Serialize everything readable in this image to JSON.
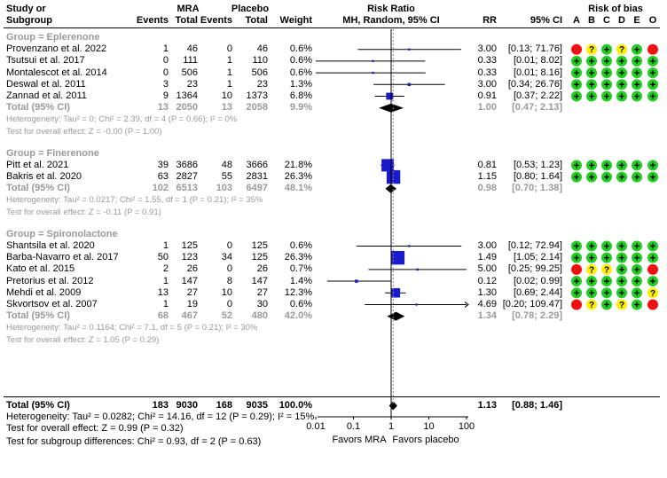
{
  "headers": {
    "study": "Study or",
    "subgroup": "Subgroup",
    "mra": "MRA",
    "placebo": "Placebo",
    "events": "Events",
    "total": "Total",
    "weight": "Weight",
    "risk_ratio": "Risk Ratio",
    "method": "MH, Random, 95% CI",
    "rr": "RR",
    "ci": "95% CI",
    "risk_of_bias": "Risk of bias",
    "bias_letters": [
      "A",
      "B",
      "C",
      "D",
      "E",
      "O"
    ]
  },
  "groups": [
    {
      "title": "Group = Eplerenone",
      "studies": [
        {
          "name": "Provenzano et al. 2022",
          "e1": "1",
          "n1": "46",
          "e2": "0",
          "n2": "46",
          "w": "0.6%",
          "rr": "3.00",
          "ci": "[0.13; 71.76]",
          "bias": [
            "red",
            "yellow",
            "green",
            "yellow",
            "green",
            "red"
          ]
        },
        {
          "name": "Tsutsui et al. 2017",
          "e1": "0",
          "n1": "111",
          "e2": "1",
          "n2": "110",
          "w": "0.6%",
          "rr": "0.33",
          "ci": "[0.01; 8.02]",
          "bias": [
            "green",
            "green",
            "green",
            "green",
            "green",
            "green"
          ]
        },
        {
          "name": "Montalescot et al. 2014",
          "e1": "0",
          "n1": "506",
          "e2": "1",
          "n2": "506",
          "w": "0.6%",
          "rr": "0.33",
          "ci": "[0.01; 8.16]",
          "bias": [
            "green",
            "green",
            "green",
            "green",
            "green",
            "green"
          ]
        },
        {
          "name": "Deswal et al. 2011",
          "e1": "3",
          "n1": "23",
          "e2": "1",
          "n2": "23",
          "w": "1.3%",
          "rr": "3.00",
          "ci": "[0.34; 26.76]",
          "bias": [
            "green",
            "green",
            "green",
            "green",
            "green",
            "green"
          ]
        },
        {
          "name": "Zannad et al. 2011",
          "e1": "9",
          "n1": "1364",
          "e2": "10",
          "n2": "1373",
          "w": "6.8%",
          "rr": "0.91",
          "ci": "[0.37; 2.22]",
          "bias": [
            "green",
            "green",
            "green",
            "green",
            "green",
            "green"
          ]
        }
      ],
      "total": {
        "label": "Total (95% CI)",
        "e1": "13",
        "n1": "2050",
        "e2": "13",
        "n2": "2058",
        "w": "9.9%",
        "rr": "1.00",
        "ci": "[0.47; 2.13]"
      },
      "heterogeneity": "Heterogeneity: Tau² = 0; Chi² = 2.39, df = 4 (P = 0.66); I² = 0%",
      "overall": "Test for overall effect: Z = -0.00 (P = 1.00)"
    },
    {
      "title": "Group = Finerenone",
      "studies": [
        {
          "name": "Pitt et al. 2021",
          "e1": "39",
          "n1": "3686",
          "e2": "48",
          "n2": "3666",
          "w": "21.8%",
          "rr": "0.81",
          "ci": "[0.53; 1.23]",
          "bias": [
            "green",
            "green",
            "green",
            "green",
            "green",
            "green"
          ]
        },
        {
          "name": "Bakris et al. 2020",
          "e1": "63",
          "n1": "2827",
          "e2": "55",
          "n2": "2831",
          "w": "26.3%",
          "rr": "1.15",
          "ci": "[0.80; 1.64]",
          "bias": [
            "green",
            "green",
            "green",
            "green",
            "green",
            "green"
          ]
        }
      ],
      "total": {
        "label": "Total (95% CI)",
        "e1": "102",
        "n1": "6513",
        "e2": "103",
        "n2": "6497",
        "w": "48.1%",
        "rr": "0.98",
        "ci": "[0.70; 1.38]"
      },
      "heterogeneity": "Heterogeneity: Tau² = 0.0217; Chi² = 1.55, df = 1 (P = 0.21); I² = 35%",
      "overall": "Test for overall effect: Z = -0.11 (P = 0.91)"
    },
    {
      "title": "Group = Spironolactone",
      "studies": [
        {
          "name": "Shantsila et al. 2020",
          "e1": "1",
          "n1": "125",
          "e2": "0",
          "n2": "125",
          "w": "0.6%",
          "rr": "3.00",
          "ci": "[0.12; 72.94]",
          "bias": [
            "green",
            "green",
            "green",
            "green",
            "green",
            "green"
          ]
        },
        {
          "name": "Barba-Navarro et al. 2017",
          "e1": "50",
          "n1": "123",
          "e2": "34",
          "n2": "125",
          "w": "26.3%",
          "rr": "1.49",
          "ci": "[1.05; 2.14]",
          "bias": [
            "green",
            "green",
            "green",
            "green",
            "green",
            "green"
          ]
        },
        {
          "name": "Kato et al. 2015",
          "e1": "2",
          "n1": "26",
          "e2": "0",
          "n2": "26",
          "w": "0.7%",
          "rr": "5.00",
          "ci": "[0.25; 99.25]",
          "bias": [
            "red",
            "yellow",
            "yellow",
            "green",
            "green",
            "red"
          ]
        },
        {
          "name": "Pretorius et al. 2012",
          "e1": "1",
          "n1": "147",
          "e2": "8",
          "n2": "147",
          "w": "1.4%",
          "rr": "0.12",
          "ci": "[0.02; 0.99]",
          "bias": [
            "green",
            "green",
            "green",
            "green",
            "green",
            "green"
          ]
        },
        {
          "name": "Mehdi et al. 2009",
          "e1": "13",
          "n1": "27",
          "e2": "10",
          "n2": "27",
          "w": "12.3%",
          "rr": "1.30",
          "ci": "[0.69; 2.44]",
          "bias": [
            "green",
            "green",
            "green",
            "green",
            "green",
            "yellow"
          ]
        },
        {
          "name": "Skvortsov et al. 2007",
          "e1": "1",
          "n1": "19",
          "e2": "0",
          "n2": "30",
          "w": "0.6%",
          "rr": "4.69",
          "ci": "[0.20; 109.47]",
          "bias": [
            "red",
            "yellow",
            "green",
            "yellow",
            "green",
            "red"
          ]
        }
      ],
      "total": {
        "label": "Total (95% CI)",
        "e1": "68",
        "n1": "467",
        "e2": "52",
        "n2": "480",
        "w": "42.0%",
        "rr": "1.34",
        "ci": "[0.78; 2.29]"
      },
      "heterogeneity": "Heterogeneity: Tau² = 0.1164; Chi² = 7.1, df = 5 (P = 0.21); I² = 30%",
      "overall": "Test for overall effect: Z = 1.05 (P = 0.29)"
    }
  ],
  "overall_total": {
    "label": "Total (95% CI)",
    "e1": "183",
    "n1": "9030",
    "e2": "168",
    "n2": "9035",
    "w": "100.0%",
    "rr": "1.13",
    "ci": "[0.88; 1.46]"
  },
  "overall_heterogeneity": "Heterogeneity: Tau² = 0.0282; Chi² = 14.16, df = 12 (P = 0.29); I² = 15%",
  "overall_effect": "Test for overall effect: Z = 0.99 (P = 0.32)",
  "subgroup_diff": "Test for subgroup differences: Chi² = 0.93, df = 2 (P = 0.63)",
  "axis": {
    "ticks": [
      "0.01",
      "0.1",
      "1",
      "10",
      "100"
    ],
    "left_label": "Favors MRA",
    "right_label": "Favors placebo"
  },
  "colors": {
    "green": "#22cc22",
    "yellow": "#ffee00",
    "red": "#ee1111",
    "square": "#1a1acc",
    "gray": "#9a9a9a"
  },
  "chart_data": {
    "type": "forest",
    "scale": "log",
    "xlim": [
      0.01,
      100
    ],
    "reference_line": 1,
    "studies": [
      {
        "name": "Provenzano et al. 2022",
        "group": "Eplerenone",
        "rr": 3.0,
        "lo": 0.13,
        "hi": 71.76,
        "weight": 0.6
      },
      {
        "name": "Tsutsui et al. 2017",
        "group": "Eplerenone",
        "rr": 0.33,
        "lo": 0.01,
        "hi": 8.02,
        "weight": 0.6
      },
      {
        "name": "Montalescot et al. 2014",
        "group": "Eplerenone",
        "rr": 0.33,
        "lo": 0.01,
        "hi": 8.16,
        "weight": 0.6
      },
      {
        "name": "Deswal et al. 2011",
        "group": "Eplerenone",
        "rr": 3.0,
        "lo": 0.34,
        "hi": 26.76,
        "weight": 1.3
      },
      {
        "name": "Zannad et al. 2011",
        "group": "Eplerenone",
        "rr": 0.91,
        "lo": 0.37,
        "hi": 2.22,
        "weight": 6.8
      },
      {
        "name": "Pitt et al. 2021",
        "group": "Finerenone",
        "rr": 0.81,
        "lo": 0.53,
        "hi": 1.23,
        "weight": 21.8
      },
      {
        "name": "Bakris et al. 2020",
        "group": "Finerenone",
        "rr": 1.15,
        "lo": 0.8,
        "hi": 1.64,
        "weight": 26.3
      },
      {
        "name": "Shantsila et al. 2020",
        "group": "Spironolactone",
        "rr": 3.0,
        "lo": 0.12,
        "hi": 72.94,
        "weight": 0.6
      },
      {
        "name": "Barba-Navarro et al. 2017",
        "group": "Spironolactone",
        "rr": 1.49,
        "lo": 1.05,
        "hi": 2.14,
        "weight": 26.3
      },
      {
        "name": "Kato et al. 2015",
        "group": "Spironolactone",
        "rr": 5.0,
        "lo": 0.25,
        "hi": 99.25,
        "weight": 0.7
      },
      {
        "name": "Pretorius et al. 2012",
        "group": "Spironolactone",
        "rr": 0.12,
        "lo": 0.02,
        "hi": 0.99,
        "weight": 1.4
      },
      {
        "name": "Mehdi et al. 2009",
        "group": "Spironolactone",
        "rr": 1.3,
        "lo": 0.69,
        "hi": 2.44,
        "weight": 12.3
      },
      {
        "name": "Skvortsov et al. 2007",
        "group": "Spironolactone",
        "rr": 4.69,
        "lo": 0.2,
        "hi": 109.47,
        "weight": 0.6
      }
    ],
    "subgroup_totals": [
      {
        "group": "Eplerenone",
        "rr": 1.0,
        "lo": 0.47,
        "hi": 2.13
      },
      {
        "group": "Finerenone",
        "rr": 0.98,
        "lo": 0.7,
        "hi": 1.38
      },
      {
        "group": "Spironolactone",
        "rr": 1.34,
        "lo": 0.78,
        "hi": 2.29
      }
    ],
    "overall": {
      "rr": 1.13,
      "lo": 0.88,
      "hi": 1.46
    }
  }
}
